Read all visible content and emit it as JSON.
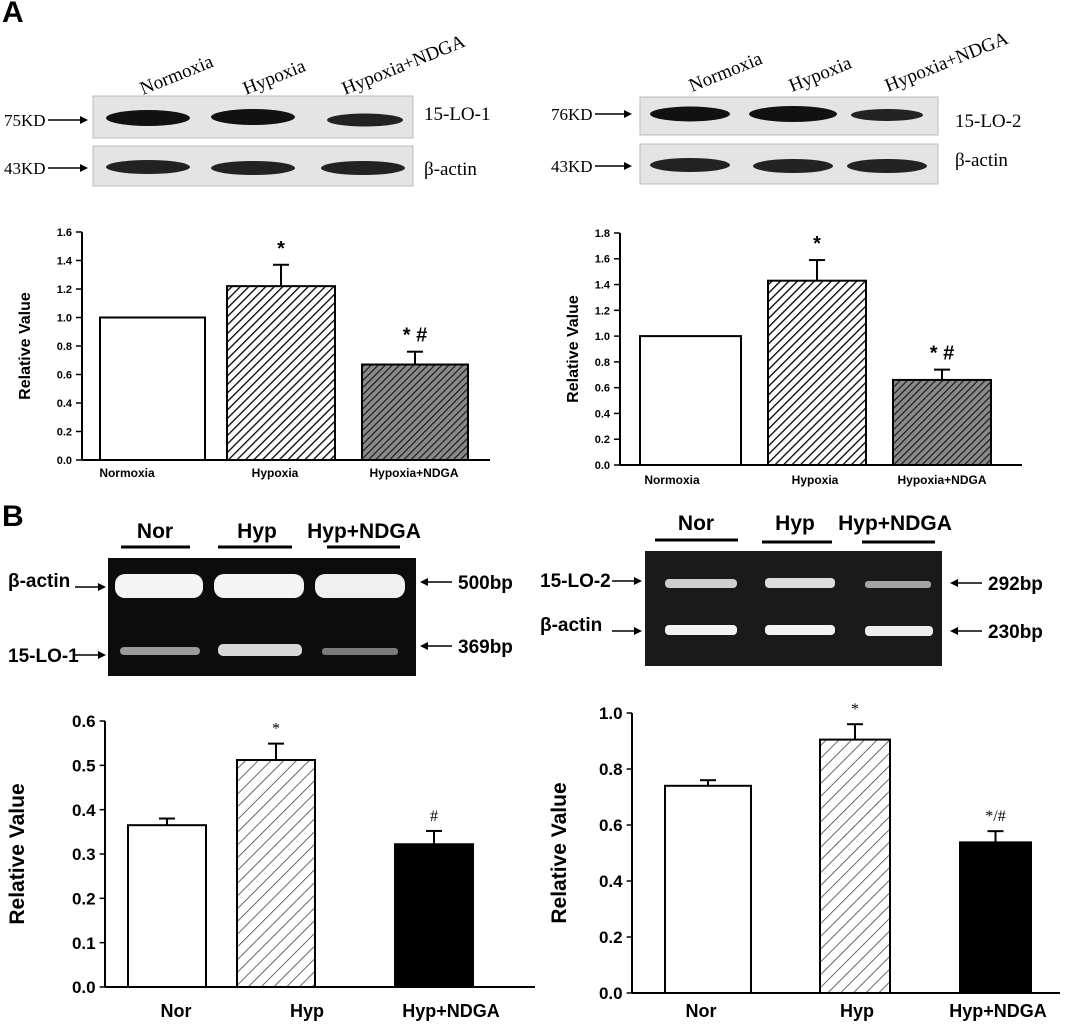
{
  "panel_labels": {
    "a": "A",
    "b": "B"
  },
  "western_left": {
    "lanes": [
      "Normoxia",
      "Hypoxia",
      "Hypoxia+NDGA"
    ],
    "markers": [
      "75KD",
      "43KD"
    ],
    "band_labels": [
      "15-LO-1",
      "β-actin"
    ]
  },
  "western_right": {
    "lanes": [
      "Normoxia",
      "Hypoxia",
      "Hypoxia+NDGA"
    ],
    "markers": [
      "76KD",
      "43KD"
    ],
    "band_labels": [
      "15-LO-2",
      "β-actin"
    ]
  },
  "gel_left": {
    "lanes": [
      "Nor",
      "Hyp",
      "Hyp+NDGA"
    ],
    "left_labels": [
      "β-actin",
      "15-LO-1"
    ],
    "right_labels": [
      "500bp",
      "369bp"
    ]
  },
  "gel_right": {
    "lanes": [
      "Nor",
      "Hyp",
      "Hyp+NDGA"
    ],
    "left_labels": [
      "15-LO-2",
      "β-actin"
    ],
    "right_labels": [
      "292bp",
      "230bp"
    ]
  },
  "chart_data": [
    {
      "id": "chart1",
      "type": "bar",
      "categories": [
        "Normoxia",
        "Hypoxia",
        "Hypoxia+NDGA"
      ],
      "values": [
        1.0,
        1.22,
        0.67
      ],
      "errors": [
        0,
        0.15,
        0.09
      ],
      "annotations": [
        "",
        "*",
        "* #"
      ],
      "ylabel": "Relative Value",
      "ylim": [
        0,
        1.6
      ],
      "yticks": [
        "0.0",
        "0.2",
        "0.4",
        "0.6",
        "0.8",
        "1.0",
        "1.2",
        "1.4",
        "1.6"
      ],
      "fills": [
        "white",
        "hatch",
        "hatch-dense"
      ]
    },
    {
      "id": "chart2",
      "type": "bar",
      "categories": [
        "Normoxia",
        "Hypoxia",
        "Hypoxia+NDGA"
      ],
      "values": [
        1.0,
        1.43,
        0.66
      ],
      "errors": [
        0,
        0.16,
        0.08
      ],
      "annotations": [
        "",
        "*",
        "* #"
      ],
      "ylabel": "Relative Value",
      "ylim": [
        0,
        1.8
      ],
      "yticks": [
        "0.0",
        "0.2",
        "0.4",
        "0.6",
        "0.8",
        "1.0",
        "1.2",
        "1.4",
        "1.6",
        "1.8"
      ],
      "fills": [
        "white",
        "hatch",
        "hatch-dense"
      ]
    },
    {
      "id": "chart3",
      "type": "bar",
      "categories": [
        "Nor",
        "Hyp",
        "Hyp+NDGA"
      ],
      "values": [
        0.365,
        0.512,
        0.322
      ],
      "errors": [
        0.015,
        0.037,
        0.03
      ],
      "annotations": [
        "",
        "*",
        "#"
      ],
      "ylabel": "Relative Value",
      "ylim": [
        0,
        0.6
      ],
      "yticks": [
        "0.0",
        "0.1",
        "0.2",
        "0.3",
        "0.4",
        "0.5",
        "0.6"
      ],
      "fills": [
        "white",
        "hatch-light",
        "black"
      ]
    },
    {
      "id": "chart4",
      "type": "bar",
      "categories": [
        "Nor",
        "Hyp",
        "Hyp+NDGA"
      ],
      "values": [
        0.74,
        0.905,
        0.538
      ],
      "errors": [
        0.02,
        0.055,
        0.04
      ],
      "annotations": [
        "",
        "*",
        "*/#"
      ],
      "ylabel": "Relative Value",
      "ylim": [
        0,
        1.0
      ],
      "yticks": [
        "0.0",
        "0.2",
        "0.4",
        "0.6",
        "0.8",
        "1.0"
      ],
      "fills": [
        "white",
        "hatch-light",
        "black"
      ]
    }
  ]
}
